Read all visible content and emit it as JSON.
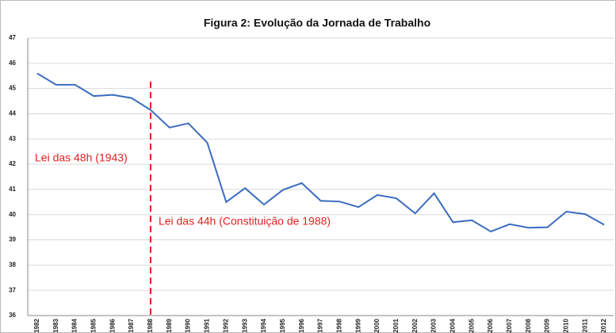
{
  "chart_data": {
    "type": "line",
    "title": "Figura 2: Evolução da Jornada de Trabalho",
    "categories": [
      "1982",
      "1983",
      "1984",
      "1985",
      "1986",
      "1987",
      "1988",
      "1989",
      "1990",
      "1991",
      "1992",
      "1993",
      "1994",
      "1995",
      "1996",
      "1997",
      "1998",
      "1999",
      "2000",
      "2001",
      "2002",
      "2003",
      "2004",
      "2005",
      "2006",
      "2007",
      "2008",
      "2009",
      "2010",
      "2011",
      "2012"
    ],
    "values": [
      45.6,
      45.15,
      45.15,
      44.7,
      44.75,
      44.62,
      44.15,
      43.45,
      43.62,
      42.85,
      40.5,
      41.05,
      40.4,
      40.98,
      41.25,
      40.55,
      40.52,
      40.3,
      40.78,
      40.65,
      40.05,
      40.85,
      39.7,
      39.78,
      39.33,
      39.62,
      39.48,
      39.5,
      40.12,
      40.02,
      39.6
    ],
    "color": "#3b6cc0",
    "ylim": [
      36,
      47
    ],
    "yticks": [
      36,
      37,
      38,
      39,
      40,
      41,
      42,
      43,
      44,
      45,
      46,
      47
    ],
    "grid": true,
    "reference_line": {
      "x": "1988",
      "color": "#e02020",
      "style": "dashed"
    },
    "annotations": [
      "Lei das 48h (1943)",
      "Lei das 44h (Constituição de 1988)"
    ]
  }
}
